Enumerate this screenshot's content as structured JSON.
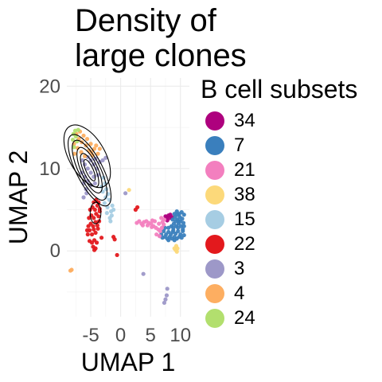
{
  "chart_data": {
    "type": "scatter",
    "title_lines": [
      "Density of",
      "large clones"
    ],
    "xlabel": "UMAP 1",
    "ylabel": "UMAP 2",
    "xlim": [
      -9,
      11.5
    ],
    "ylim": [
      -8,
      21
    ],
    "x_ticks": [
      -5,
      0,
      5,
      10
    ],
    "x_tick_labels": [
      "-5",
      "0",
      "5",
      "10"
    ],
    "y_ticks": [
      0,
      10,
      20
    ],
    "y_tick_labels": [
      "0",
      "10",
      "20"
    ],
    "grid": true,
    "legend_title": "B cell subsets",
    "legend_position": "right",
    "series": [
      {
        "name": "34",
        "color": "#ae017e",
        "points": [
          [
            7.7,
            4.1
          ],
          [
            8.0,
            4.3
          ],
          [
            8.2,
            4.0
          ],
          [
            7.8,
            3.7
          ],
          [
            8.3,
            4.4
          ],
          [
            7.5,
            4.2
          ],
          [
            8.6,
            4.1
          ]
        ]
      },
      {
        "name": "7",
        "color": "#3a7fbd",
        "points": [
          [
            6.8,
            2.0
          ],
          [
            7.2,
            2.4
          ],
          [
            7.6,
            2.0
          ],
          [
            8.0,
            2.3
          ],
          [
            8.4,
            2.0
          ],
          [
            8.8,
            2.5
          ],
          [
            9.2,
            2.1
          ],
          [
            9.6,
            2.4
          ],
          [
            10.0,
            2.0
          ],
          [
            10.4,
            2.4
          ],
          [
            7.0,
            1.6
          ],
          [
            7.4,
            1.7
          ],
          [
            7.8,
            1.5
          ],
          [
            8.2,
            1.7
          ],
          [
            8.6,
            1.5
          ],
          [
            9.0,
            1.7
          ],
          [
            9.4,
            1.5
          ],
          [
            9.8,
            1.7
          ],
          [
            10.2,
            1.6
          ],
          [
            8.5,
            3.0
          ],
          [
            8.9,
            3.3
          ],
          [
            9.3,
            3.0
          ],
          [
            9.7,
            3.3
          ],
          [
            10.1,
            3.0
          ],
          [
            10.5,
            3.4
          ],
          [
            8.7,
            3.8
          ],
          [
            9.1,
            4.1
          ],
          [
            9.5,
            3.8
          ],
          [
            9.9,
            4.1
          ],
          [
            10.3,
            3.9
          ],
          [
            10.6,
            4.4
          ],
          [
            9.0,
            4.5
          ],
          [
            9.4,
            4.8
          ],
          [
            9.8,
            4.5
          ],
          [
            10.2,
            4.7
          ],
          [
            10.6,
            3.0
          ],
          [
            10.4,
            2.6
          ],
          [
            9.6,
            2.8
          ],
          [
            8.8,
            2.8
          ],
          [
            9.2,
            3.6
          ],
          [
            9.7,
            3.6
          ],
          [
            10.0,
            3.6
          ],
          [
            9.5,
            4.4
          ],
          [
            8.7,
            2.3
          ],
          [
            7.4,
            2.8
          ],
          [
            8.0,
            2.8
          ],
          [
            6.6,
            1.8
          ],
          [
            10.6,
            1.9
          ],
          [
            9.0,
            1.3
          ],
          [
            8.0,
            1.3
          ]
        ]
      },
      {
        "name": "21",
        "color": "#f37fbf",
        "points": [
          [
            2.7,
            3.4
          ],
          [
            3.1,
            3.6
          ],
          [
            3.5,
            3.3
          ],
          [
            3.9,
            3.5
          ],
          [
            4.3,
            3.6
          ],
          [
            4.7,
            3.4
          ],
          [
            5.1,
            3.3
          ],
          [
            5.5,
            3.0
          ],
          [
            5.9,
            2.8
          ],
          [
            6.3,
            2.6
          ],
          [
            6.6,
            2.4
          ],
          [
            6.9,
            2.8
          ],
          [
            7.2,
            3.2
          ],
          [
            6.4,
            3.3
          ],
          [
            5.7,
            3.6
          ],
          [
            5.2,
            2.9
          ],
          [
            4.5,
            3.1
          ],
          [
            3.7,
            3.1
          ],
          [
            6.0,
            2.0
          ],
          [
            6.5,
            1.8
          ],
          [
            7.0,
            3.5
          ],
          [
            7.3,
            3.8
          ],
          [
            6.8,
            4.0
          ],
          [
            5.3,
            3.7
          ]
        ]
      },
      {
        "name": "38",
        "color": "#fcd97a",
        "points": [
          [
            9.0,
            0.3
          ],
          [
            9.3,
            0.6
          ],
          [
            9.2,
            0.1
          ],
          [
            9.5,
            0.3
          ],
          [
            9.4,
            -0.1
          ],
          [
            1.4,
            7.4
          ]
        ]
      },
      {
        "name": "15",
        "color": "#a6cde3",
        "points": [
          [
            -1.6,
            4.8
          ],
          [
            -1.4,
            5.5
          ],
          [
            -1.9,
            6.2
          ],
          [
            -2.1,
            6.9
          ],
          [
            -2.4,
            7.5
          ],
          [
            -2.6,
            8.2
          ],
          [
            -2.9,
            8.9
          ],
          [
            -1.5,
            4.3
          ],
          [
            -1.8,
            4.0
          ],
          [
            -2.3,
            4.6
          ],
          [
            -2.2,
            5.3
          ],
          [
            -2.7,
            5.8
          ],
          [
            -2.5,
            6.5
          ],
          [
            -3.0,
            7.2
          ],
          [
            -3.2,
            7.8
          ],
          [
            -1.2,
            5.0
          ],
          [
            -1.7,
            3.6
          ]
        ]
      },
      {
        "name": "22",
        "color": "#e3191d",
        "points": [
          [
            -5.5,
            2.0
          ],
          [
            -5.2,
            2.5
          ],
          [
            -4.8,
            2.0
          ],
          [
            -4.5,
            2.6
          ],
          [
            -4.2,
            2.2
          ],
          [
            -3.8,
            2.7
          ],
          [
            -5.4,
            3.0
          ],
          [
            -5.0,
            3.3
          ],
          [
            -4.6,
            3.0
          ],
          [
            -4.2,
            3.5
          ],
          [
            -3.9,
            3.1
          ],
          [
            -3.6,
            3.6
          ],
          [
            -5.3,
            4.0
          ],
          [
            -4.9,
            4.3
          ],
          [
            -4.5,
            4.0
          ],
          [
            -4.1,
            4.5
          ],
          [
            -3.7,
            4.2
          ],
          [
            -5.1,
            5.0
          ],
          [
            -4.7,
            5.3
          ],
          [
            -4.3,
            5.0
          ],
          [
            -3.9,
            5.5
          ],
          [
            -3.5,
            5.1
          ],
          [
            -4.5,
            5.9
          ],
          [
            -4.1,
            6.2
          ],
          [
            -3.7,
            5.9
          ],
          [
            -5.2,
            1.2
          ],
          [
            -4.8,
            1.0
          ],
          [
            -4.4,
            1.3
          ],
          [
            -4.0,
            1.0
          ],
          [
            -4.6,
            0.5
          ],
          [
            -4.2,
            0.3
          ],
          [
            -4.4,
            0.1
          ],
          [
            -5.6,
            2.5
          ],
          [
            -3.5,
            4.8
          ],
          [
            -1.2,
            1.7
          ],
          [
            -1.0,
            1.4
          ],
          [
            -0.6,
            -0.5
          ],
          [
            2.8,
            5.3
          ],
          [
            2.5,
            5.0
          ],
          [
            -3.2,
            1.6
          ]
        ]
      },
      {
        "name": "3",
        "color": "#9d98c8",
        "points": [
          [
            -5.0,
            8.0
          ],
          [
            -5.5,
            8.5
          ],
          [
            -6.0,
            9.0
          ],
          [
            -6.5,
            9.5
          ],
          [
            -4.5,
            9.0
          ],
          [
            -5.0,
            9.5
          ],
          [
            -5.5,
            10.0
          ],
          [
            -6.0,
            10.5
          ],
          [
            -6.4,
            11.0
          ],
          [
            -4.0,
            10.0
          ],
          [
            -4.5,
            10.5
          ],
          [
            -5.0,
            11.0
          ],
          [
            -5.5,
            11.4
          ],
          [
            -5.8,
            7.5
          ],
          [
            -6.2,
            8.2
          ],
          [
            -4.3,
            8.2
          ],
          [
            -3.8,
            9.2
          ],
          [
            -4.2,
            11.2
          ],
          [
            -3.5,
            10.8
          ],
          [
            -3.0,
            11.0
          ],
          [
            -2.5,
            11.3
          ],
          [
            0.8,
            7.0
          ],
          [
            3.8,
            -2.8
          ],
          [
            7.8,
            -4.6
          ],
          [
            7.7,
            -5.4
          ],
          [
            7.5,
            -5.9
          ],
          [
            7.3,
            -6.3
          ],
          [
            -6.2,
            6.5
          ],
          [
            -5.7,
            7.0
          ]
        ]
      },
      {
        "name": "4",
        "color": "#fdae61",
        "points": [
          [
            -7.4,
            14.2
          ],
          [
            -6.8,
            14.5
          ],
          [
            -6.2,
            14.0
          ],
          [
            -5.6,
            13.6
          ],
          [
            -5.0,
            13.0
          ],
          [
            -4.4,
            12.4
          ],
          [
            -3.8,
            11.8
          ],
          [
            -7.8,
            13.0
          ],
          [
            -7.2,
            12.5
          ],
          [
            -6.6,
            12.0
          ],
          [
            -6.0,
            11.5
          ],
          [
            -5.3,
            12.2
          ],
          [
            -4.7,
            11.6
          ],
          [
            -4.1,
            12.8
          ],
          [
            -6.5,
            13.2
          ],
          [
            -7.0,
            13.6
          ],
          [
            -5.8,
            12.8
          ],
          [
            -4.9,
            12.0
          ],
          [
            -7.7,
            11.8
          ],
          [
            -3.5,
            12.4
          ],
          [
            -8.2,
            -2.3
          ],
          [
            -8.4,
            -2.4
          ]
        ]
      },
      {
        "name": "24",
        "color": "#b2df6e",
        "points": [
          [
            -7.6,
            14.6
          ],
          [
            -7.9,
            14.2
          ],
          [
            -7.5,
            13.9
          ],
          [
            -7.1,
            14.7
          ],
          [
            -8.0,
            13.5
          ],
          [
            -7.3,
            13.3
          ],
          [
            -7.8,
            12.6
          ]
        ]
      }
    ]
  }
}
